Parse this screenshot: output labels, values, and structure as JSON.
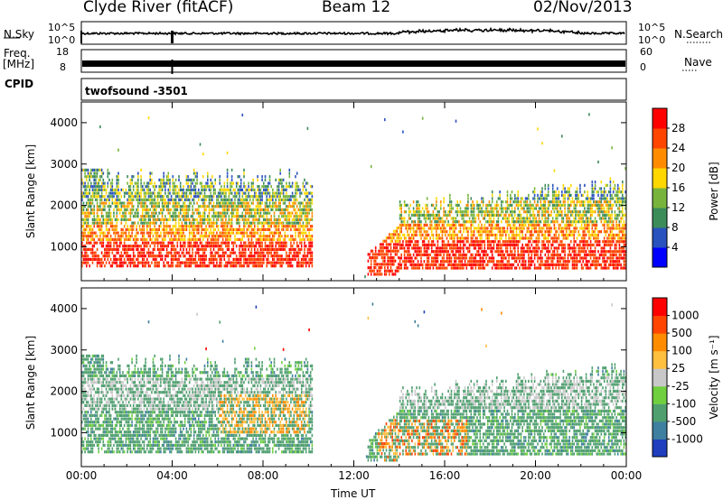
{
  "header": {
    "title": "Clyde River (fitACF)",
    "beam": "Beam 12",
    "date": "02/Nov/2013"
  },
  "top_panels": {
    "noise_label": "N.Sky",
    "noise_ticks": [
      "10^5",
      "10^0"
    ],
    "search_label": "N.Search",
    "search_ticks": [
      "10^5",
      "10^0"
    ],
    "freq_label": "Freq.",
    "freq_unit": "[MHz]",
    "freq_ticks": [
      "18",
      "8"
    ],
    "nave_label": "Nave",
    "nave_ticks": [
      "60",
      "0"
    ],
    "cpid_label": "CPID",
    "cpid_value": "twofsound -3501"
  },
  "chart_data": [
    {
      "type": "heatmap",
      "name": "power",
      "ylabel": "Slant Range [km]",
      "yticks": [
        "4000",
        "3000",
        "2000",
        "1000"
      ],
      "ylim": [
        180,
        4500
      ],
      "colorbar_label": "Power [dB]",
      "colorbar_ticks": [
        "28",
        "24",
        "20",
        "16",
        "12",
        "8",
        "4"
      ],
      "colors": [
        "#0000ff",
        "#2a52be",
        "#3c8c5a",
        "#78b43c",
        "#ffd700",
        "#ff8c00",
        "#ff4500",
        "#ff0000"
      ]
    },
    {
      "type": "heatmap",
      "name": "velocity",
      "ylabel": "Slant Range [km]",
      "yticks": [
        "4000",
        "3000",
        "2000",
        "1000"
      ],
      "ylim": [
        180,
        4500
      ],
      "colorbar_label": "Velocity [m s⁻¹]",
      "colorbar_ticks": [
        "1000",
        "500",
        "100",
        "25",
        "-25",
        "-100",
        "-500",
        "-1000"
      ],
      "colors": [
        "#1f3fbf",
        "#3f7f9f",
        "#4f9f6f",
        "#6fcf3f",
        "#c8c8c8",
        "#ffbf3f",
        "#ff8c00",
        "#ff4500",
        "#ff0000"
      ]
    }
  ],
  "x_axis": {
    "label": "Time UT",
    "ticks": [
      "00:00",
      "04:00",
      "08:00",
      "12:00",
      "16:00",
      "20:00",
      "00:00"
    ]
  }
}
